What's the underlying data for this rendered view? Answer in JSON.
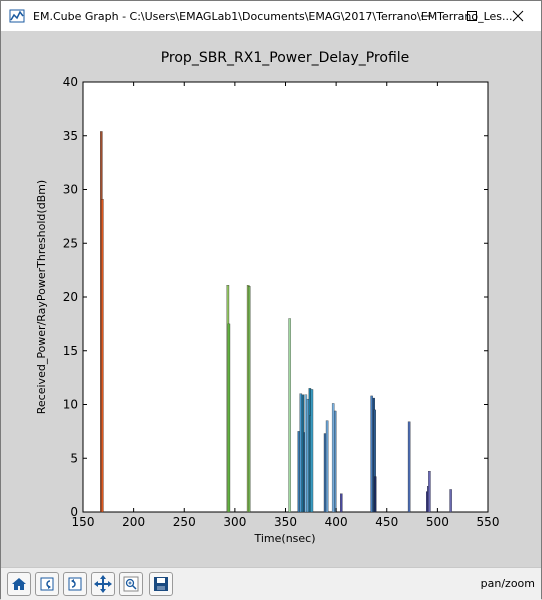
{
  "window": {
    "title": "EM.Cube Graph - C:\\Users\\EMAGLab1\\Documents\\EMAG\\2017\\Terrano\\EMTerrano_Les..."
  },
  "toolbar": {
    "buttons": [
      "home-icon",
      "back-icon",
      "forward-icon",
      "pan-icon",
      "zoom-icon",
      "save-icon"
    ],
    "mode": "pan/zoom"
  },
  "chart_data": {
    "type": "bar",
    "title": "Prop_SBR_RX1_Power_Delay_Profile",
    "xlabel": "Time(nsec)",
    "ylabel": "Received_Power/RayPowerThreshold(dBm)",
    "xlim": [
      150,
      550
    ],
    "ylim": [
      0,
      40
    ],
    "xticks": [
      150,
      200,
      250,
      300,
      350,
      400,
      450,
      500,
      550
    ],
    "yticks": [
      0,
      5,
      10,
      15,
      20,
      25,
      30,
      35,
      40
    ],
    "grid": false,
    "bars": [
      {
        "x": 168,
        "y": 35.4,
        "color": "#a05030"
      },
      {
        "x": 169,
        "y": 29.1,
        "color": "#e05a20"
      },
      {
        "x": 293,
        "y": 21.1,
        "color": "#90c060"
      },
      {
        "x": 294,
        "y": 17.5,
        "color": "#60b040"
      },
      {
        "x": 313,
        "y": 21.1,
        "color": "#a0c860"
      },
      {
        "x": 314,
        "y": 21.0,
        "color": "#70b050"
      },
      {
        "x": 354,
        "y": 18.0,
        "color": "#a0d8a0"
      },
      {
        "x": 363,
        "y": 7.5,
        "color": "#3a7ab0"
      },
      {
        "x": 365,
        "y": 11.0,
        "color": "#4a9ad0"
      },
      {
        "x": 367,
        "y": 10.9,
        "color": "#1a6a90"
      },
      {
        "x": 369,
        "y": 7.4,
        "color": "#2a5a8a"
      },
      {
        "x": 370,
        "y": 10.9,
        "color": "#7ab8e0"
      },
      {
        "x": 372,
        "y": 10.5,
        "color": "#5aa0d0"
      },
      {
        "x": 374,
        "y": 11.5,
        "color": "#1a7aa0"
      },
      {
        "x": 375,
        "y": 9.0,
        "color": "#2a8ab0"
      },
      {
        "x": 376,
        "y": 11.4,
        "color": "#3a9ac0"
      },
      {
        "x": 389,
        "y": 7.3,
        "color": "#3a6aa0"
      },
      {
        "x": 391,
        "y": 8.5,
        "color": "#6aa0d0"
      },
      {
        "x": 397,
        "y": 10.1,
        "color": "#7ab0e0"
      },
      {
        "x": 399,
        "y": 9.4,
        "color": "#5a90c0"
      },
      {
        "x": 405,
        "y": 1.7,
        "color": "#4a4aa0"
      },
      {
        "x": 435,
        "y": 10.8,
        "color": "#4a80c0"
      },
      {
        "x": 437,
        "y": 10.6,
        "color": "#1a4a80"
      },
      {
        "x": 438,
        "y": 9.5,
        "color": "#2a5a90"
      },
      {
        "x": 438.5,
        "y": 3.3,
        "color": "#1a2a60"
      },
      {
        "x": 472,
        "y": 8.4,
        "color": "#4a6ab0"
      },
      {
        "x": 490,
        "y": 1.9,
        "color": "#2a2a80"
      },
      {
        "x": 491,
        "y": 2.4,
        "color": "#3a3a90"
      },
      {
        "x": 492,
        "y": 3.8,
        "color": "#6a6ab8"
      },
      {
        "x": 513,
        "y": 2.1,
        "color": "#6a6ab0"
      }
    ]
  }
}
